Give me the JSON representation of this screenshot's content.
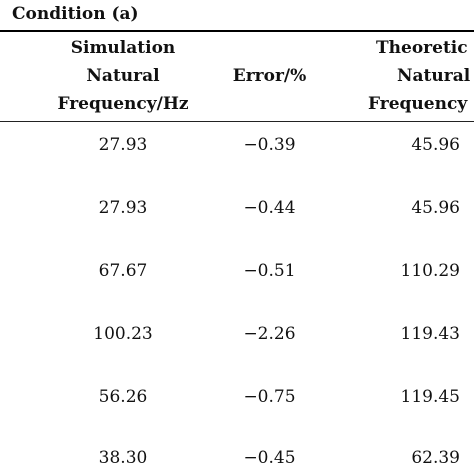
{
  "table": {
    "title": "Condition (a)",
    "headers": {
      "sim": [
        "Simulation",
        "Natural",
        "Frequency/Hz"
      ],
      "error": "Error/%",
      "theory": [
        "Theoretic",
        "Natural",
        "Frequency"
      ]
    },
    "rows": [
      {
        "sim": "27.93",
        "error": "−0.39",
        "theory": "45.96"
      },
      {
        "sim": "27.93",
        "error": "−0.44",
        "theory": "45.96"
      },
      {
        "sim": "67.67",
        "error": "−0.51",
        "theory": "110.29"
      },
      {
        "sim": "100.23",
        "error": "−2.26",
        "theory": "119.43"
      },
      {
        "sim": "56.26",
        "error": "−0.75",
        "theory": "119.45"
      },
      {
        "sim": "38.30",
        "error": "−0.45",
        "theory": "62.39"
      }
    ]
  }
}
